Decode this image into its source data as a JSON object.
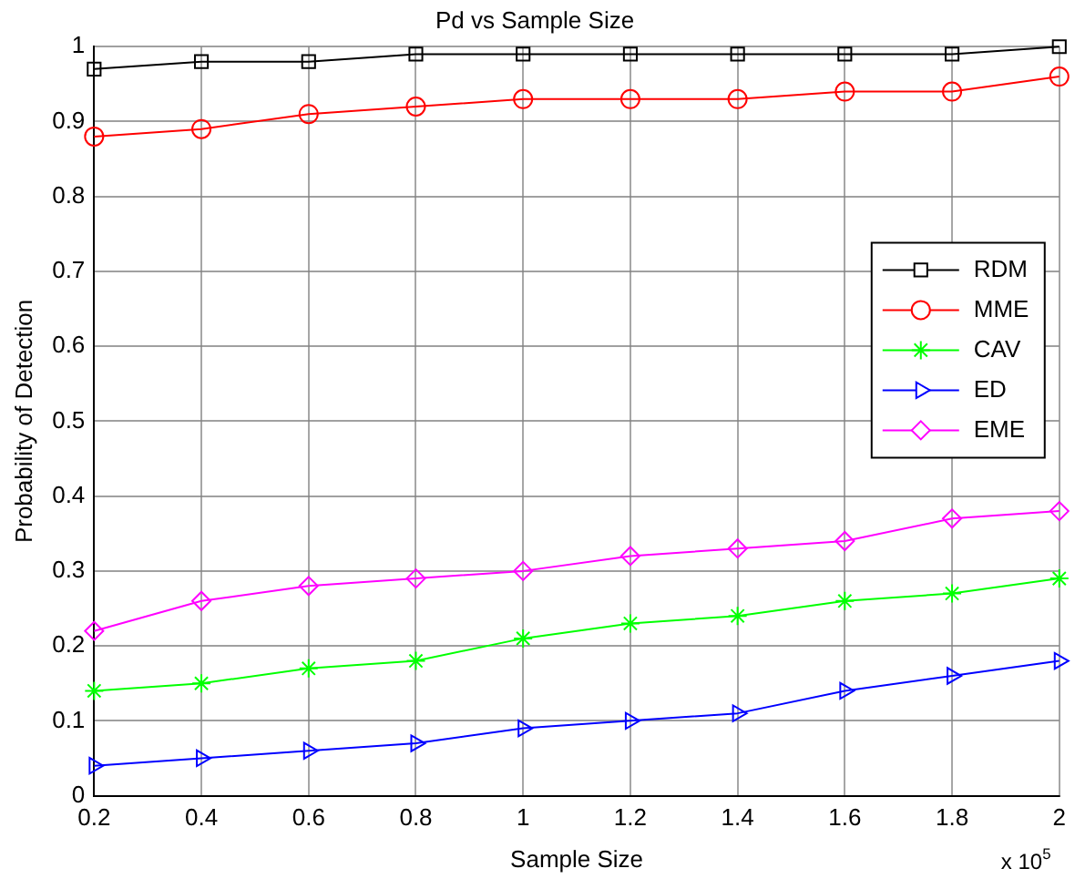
{
  "chart_data": {
    "type": "line",
    "title": "Pd vs Sample Size",
    "xlabel": "Sample Size",
    "ylabel": "Probability of Detection",
    "annotations": [
      "x 10$^{5}$"
    ],
    "x": [
      0.2,
      0.4,
      0.6,
      0.8,
      1,
      1.2,
      1.4,
      1.6,
      1.8,
      2
    ],
    "xlim": [
      0.2,
      2
    ],
    "xticks": [
      0.2,
      0.4,
      0.6,
      0.8,
      1,
      1.2,
      1.4,
      1.6,
      1.8,
      2
    ],
    "ylim": [
      0,
      1
    ],
    "yticks": [
      0,
      0.1,
      0.2,
      0.3,
      0.4,
      0.5,
      0.6,
      0.7,
      0.8,
      0.9,
      1
    ],
    "grid": true,
    "legend": "right",
    "line_style": "solid",
    "series": [
      {
        "name": "RDM",
        "color": "#000000",
        "marker": "square",
        "values": [
          0.97,
          0.98,
          0.98,
          0.99,
          0.99,
          0.99,
          0.99,
          0.99,
          0.99,
          1.0
        ]
      },
      {
        "name": "MME",
        "color": "#ff0000",
        "marker": "circle",
        "values": [
          0.88,
          0.89,
          0.91,
          0.92,
          0.93,
          0.93,
          0.93,
          0.94,
          0.94,
          0.96
        ]
      },
      {
        "name": "CAV",
        "color": "#00ff00",
        "marker": "cross",
        "values": [
          0.14,
          0.15,
          0.17,
          0.18,
          0.21,
          0.23,
          0.24,
          0.26,
          0.27,
          0.29
        ]
      },
      {
        "name": "ED",
        "color": "#0000ff",
        "marker": "triangle",
        "values": [
          0.04,
          0.05,
          0.06,
          0.07,
          0.09,
          0.1,
          0.11,
          0.14,
          0.16,
          0.18
        ]
      },
      {
        "name": "EME",
        "color": "#ff00ff",
        "marker": "diamond",
        "values": [
          0.22,
          0.26,
          0.28,
          0.29,
          0.3,
          0.32,
          0.33,
          0.34,
          0.37,
          0.38
        ]
      }
    ]
  }
}
